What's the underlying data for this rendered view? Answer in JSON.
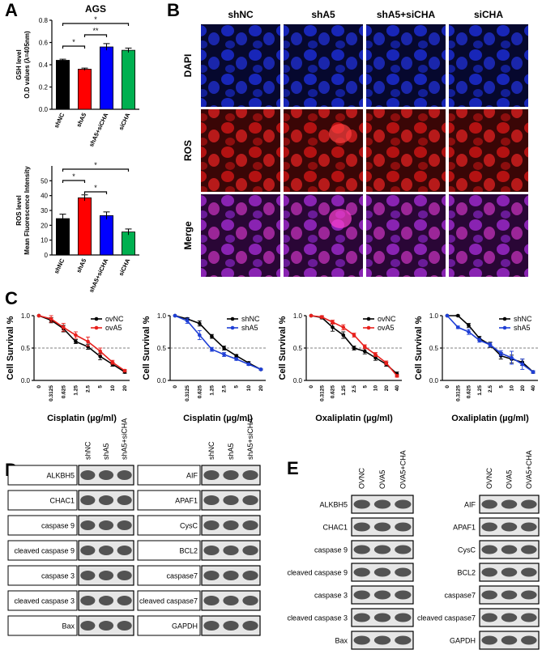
{
  "panels": {
    "a": "A",
    "b": "B",
    "c": "C",
    "d": "D",
    "e": "E"
  },
  "chart_data": [
    {
      "type": "bar",
      "title": "AGS",
      "y_label": [
        "GSH level",
        "O.D values (λ=405nm)"
      ],
      "categories": [
        "shNC",
        "shA5",
        "shA5+siCHA",
        "siCHA"
      ],
      "values": [
        0.44,
        0.36,
        0.56,
        0.53
      ],
      "errors": [
        0.01,
        0.01,
        0.03,
        0.02
      ],
      "colors": [
        "#000000",
        "#ff0000",
        "#0000ff",
        "#00b050"
      ],
      "ylim": [
        0,
        0.8
      ],
      "yticks": [
        {
          "value": 0,
          "label": "0.0"
        },
        {
          "value": 0.2,
          "label": "0.2"
        },
        {
          "value": 0.4,
          "label": "0.4"
        },
        {
          "value": 0.6,
          "label": "0.6"
        },
        {
          "value": 0.8,
          "label": "0.8"
        }
      ],
      "annotations": [
        {
          "text": "*",
          "between": [
            "shNC",
            "siCHA"
          ]
        },
        {
          "text": "**",
          "between": [
            "shA5",
            "shA5+siCHA"
          ]
        },
        {
          "text": "*",
          "between": [
            "shNC",
            "shA5"
          ]
        }
      ]
    },
    {
      "type": "bar",
      "y_label": [
        "ROS level",
        "Mean Fluorescence Intensity"
      ],
      "categories": [
        "shNC",
        "shA5",
        "shA5+siCHA",
        "siCHA"
      ],
      "values": [
        24.5,
        38.5,
        26.5,
        15.5
      ],
      "errors": [
        3,
        2,
        2.5,
        2
      ],
      "colors": [
        "#000000",
        "#ff0000",
        "#0000ff",
        "#00b050"
      ],
      "ylim": [
        0,
        60
      ],
      "yticks": [
        0,
        10,
        20,
        30,
        40,
        50
      ],
      "annotations": [
        {
          "text": "*",
          "between": [
            "shNC",
            "siCHA"
          ]
        },
        {
          "text": "*",
          "between": [
            "shNC",
            "shA5"
          ]
        },
        {
          "text": "*",
          "between": [
            "shA5",
            "shA5+siCHA"
          ]
        }
      ]
    },
    {
      "type": "line",
      "y_label": "Cell Survival %",
      "x_label": "Cisplatin (µg/ml)",
      "categories": [
        "0",
        "0.3125",
        "0.625",
        "1.25",
        "2.5",
        "5",
        "10",
        "20"
      ],
      "series": [
        {
          "name": "ovNC",
          "color": "#000000",
          "values": [
            1.0,
            0.93,
            0.8,
            0.6,
            0.52,
            0.37,
            0.25,
            0.13
          ],
          "errors": [
            0,
            0.04,
            0.05,
            0.03,
            0.04,
            0.05,
            0.03,
            0.02
          ]
        },
        {
          "name": "ovA5",
          "color": "#e8201c",
          "values": [
            1.0,
            0.95,
            0.82,
            0.7,
            0.6,
            0.45,
            0.28,
            0.15
          ],
          "errors": [
            0,
            0.05,
            0.06,
            0.05,
            0.07,
            0.05,
            0.03,
            0.02
          ]
        }
      ],
      "ylim": [
        0,
        1
      ],
      "yticks": [
        {
          "value": 0,
          "label": "0.0"
        },
        {
          "value": 0.5,
          "label": "0.5"
        },
        {
          "value": 1,
          "label": "1.0"
        }
      ],
      "reference_line": 0.5,
      "legend": "upper right"
    },
    {
      "type": "line",
      "y_label": "Cell Survival %",
      "x_label": "Cisplatin (µg/ml)",
      "categories": [
        "0",
        "0.3125",
        "0.625",
        "1.25",
        "2.5",
        "5",
        "10",
        "20"
      ],
      "series": [
        {
          "name": "shNC",
          "color": "#000000",
          "values": [
            1.0,
            0.95,
            0.88,
            0.68,
            0.5,
            0.38,
            0.27,
            0.17
          ],
          "errors": [
            0,
            0.02,
            0.04,
            0.03,
            0.03,
            0.02,
            0.02,
            0.01
          ]
        },
        {
          "name": "shA5",
          "color": "#1f3fd6",
          "values": [
            1.0,
            0.92,
            0.7,
            0.48,
            0.4,
            0.33,
            0.25,
            0.17
          ],
          "errors": [
            0,
            0.04,
            0.07,
            0.03,
            0.03,
            0.02,
            0.02,
            0.01
          ]
        }
      ],
      "ylim": [
        0,
        1
      ],
      "yticks": [
        {
          "value": 0,
          "label": "0.0"
        },
        {
          "value": 0.5,
          "label": "0.5"
        },
        {
          "value": 1,
          "label": "1.0"
        }
      ],
      "reference_line": 0.5,
      "legend": "upper right"
    },
    {
      "type": "line",
      "y_label": "Cell Survival %",
      "x_label": "Oxaliplatin (µg/ml)",
      "categories": [
        "0",
        "0.3125",
        "0.625",
        "1.25",
        "2.5",
        "5",
        "10",
        "20",
        "40"
      ],
      "series": [
        {
          "name": "ovNC",
          "color": "#000000",
          "values": [
            1.0,
            0.97,
            0.82,
            0.7,
            0.5,
            0.45,
            0.35,
            0.25,
            0.1
          ],
          "errors": [
            0,
            0.02,
            0.06,
            0.05,
            0.03,
            0.04,
            0.04,
            0.03,
            0.03
          ]
        },
        {
          "name": "ovA5",
          "color": "#e8201c",
          "values": [
            1.0,
            0.98,
            0.9,
            0.82,
            0.7,
            0.52,
            0.4,
            0.27,
            0.07
          ],
          "errors": [
            0,
            0.02,
            0.03,
            0.04,
            0.03,
            0.03,
            0.03,
            0.03,
            0.02
          ]
        }
      ],
      "ylim": [
        0,
        1
      ],
      "yticks": [
        {
          "value": 0,
          "label": "0.0"
        },
        {
          "value": 0.5,
          "label": "0.5"
        },
        {
          "value": 1,
          "label": "1.0"
        }
      ],
      "reference_line": 0.5,
      "legend": "upper right"
    },
    {
      "type": "line",
      "y_label": "Cell Survival %",
      "x_label": "Oxaliplatin (µg/ml)",
      "categories": [
        "0",
        "0.3125",
        "0.625",
        "1.25",
        "2.5",
        "5",
        "10",
        "20",
        "40"
      ],
      "series": [
        {
          "name": "shNC",
          "color": "#000000",
          "values": [
            1.0,
            1.0,
            0.85,
            0.65,
            0.55,
            0.38,
            0.33,
            0.28,
            0.13
          ],
          "errors": [
            0,
            0.01,
            0.03,
            0.03,
            0.04,
            0.05,
            0.06,
            0.05,
            0.02
          ]
        },
        {
          "name": "shA5",
          "color": "#1f3fd6",
          "values": [
            1.0,
            0.82,
            0.75,
            0.62,
            0.55,
            0.42,
            0.35,
            0.25,
            0.13
          ],
          "errors": [
            0,
            0.02,
            0.04,
            0.03,
            0.03,
            0.04,
            0.1,
            0.08,
            0.02
          ]
        }
      ],
      "ylim": [
        0,
        1
      ],
      "yticks": [
        {
          "value": 0,
          "label": "0.0"
        },
        {
          "value": 0.5,
          "label": "0.5"
        },
        {
          "value": 1,
          "label": "1.0"
        }
      ],
      "reference_line": 0.5,
      "legend": "upper right"
    }
  ],
  "imaging": {
    "columns": [
      "shNC",
      "shA5",
      "shA5+siCHA",
      "siCHA"
    ],
    "rows": [
      "DAPI",
      "ROS",
      "Merge"
    ]
  },
  "blots_d": {
    "lanes": [
      "shNC",
      "shA5",
      "shA5+siCHA"
    ],
    "left": [
      "ALKBH5",
      "CHAC1",
      "caspase 9",
      "cleaved caspase 9",
      "caspase 3",
      "cleaved caspase 3",
      "Bax"
    ],
    "right": [
      "AIF",
      "APAF1",
      "CysC",
      "BCL2",
      "caspase7",
      "cleaved caspase7",
      "GAPDH"
    ]
  },
  "blots_e": {
    "lanes": [
      "OVNC",
      "OVA5",
      "OVA5+CHA"
    ],
    "left": [
      "ALKBH5",
      "CHAC1",
      "caspase 9",
      "cleaved caspase 9",
      "caspase 3",
      "cleaved caspase 3",
      "Bax"
    ],
    "right": [
      "AIF",
      "APAF1",
      "CysC",
      "BCL2",
      "caspase7",
      "cleaved caspase7",
      "GAPDH"
    ]
  }
}
